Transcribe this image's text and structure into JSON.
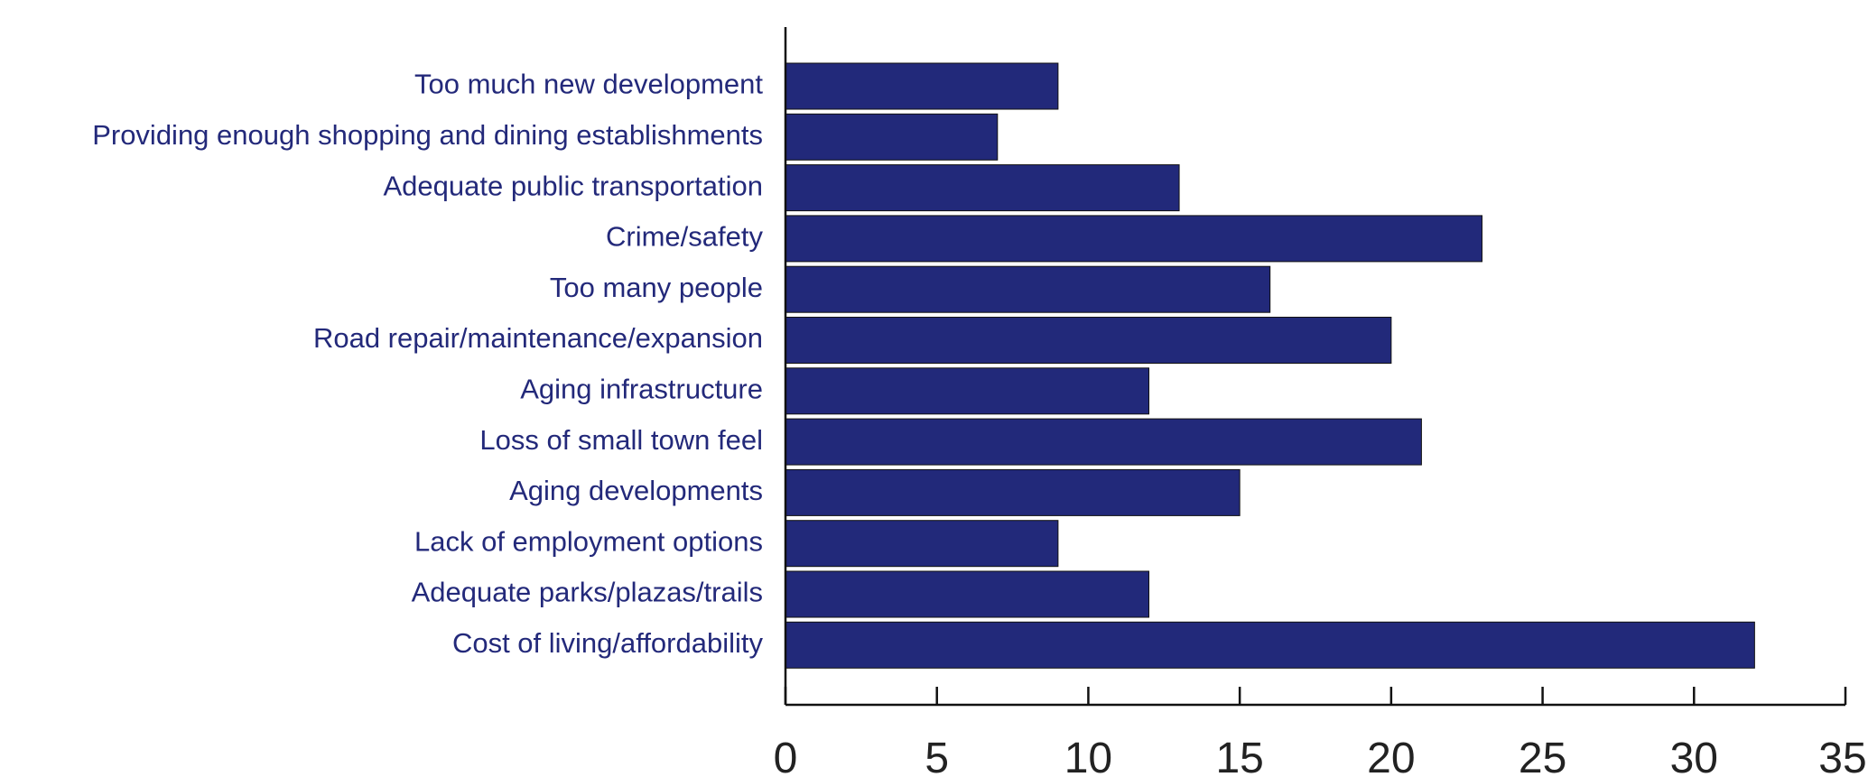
{
  "chart_data": {
    "type": "bar",
    "orientation": "horizontal",
    "title": "",
    "xlabel": "",
    "ylabel": "",
    "categories": [
      "Too much new development",
      "Providing enough shopping and dining establishments",
      "Adequate public transportation",
      "Crime/safety",
      "Too many people",
      "Road repair/maintenance/expansion",
      "Aging infrastructure",
      "Loss of small town feel",
      "Aging developments",
      "Lack of employment options",
      "Adequate parks/plazas/trails",
      "Cost of living/affordability"
    ],
    "values": [
      9,
      7,
      13,
      23,
      16,
      20,
      12,
      21,
      15,
      9,
      12,
      32
    ],
    "xlim": [
      0,
      35
    ],
    "xticks": [
      0,
      5,
      10,
      15,
      20,
      25,
      30,
      35
    ],
    "bar_color": "#22297a",
    "label_color": "#23297a",
    "grid": false,
    "legend": "none"
  }
}
